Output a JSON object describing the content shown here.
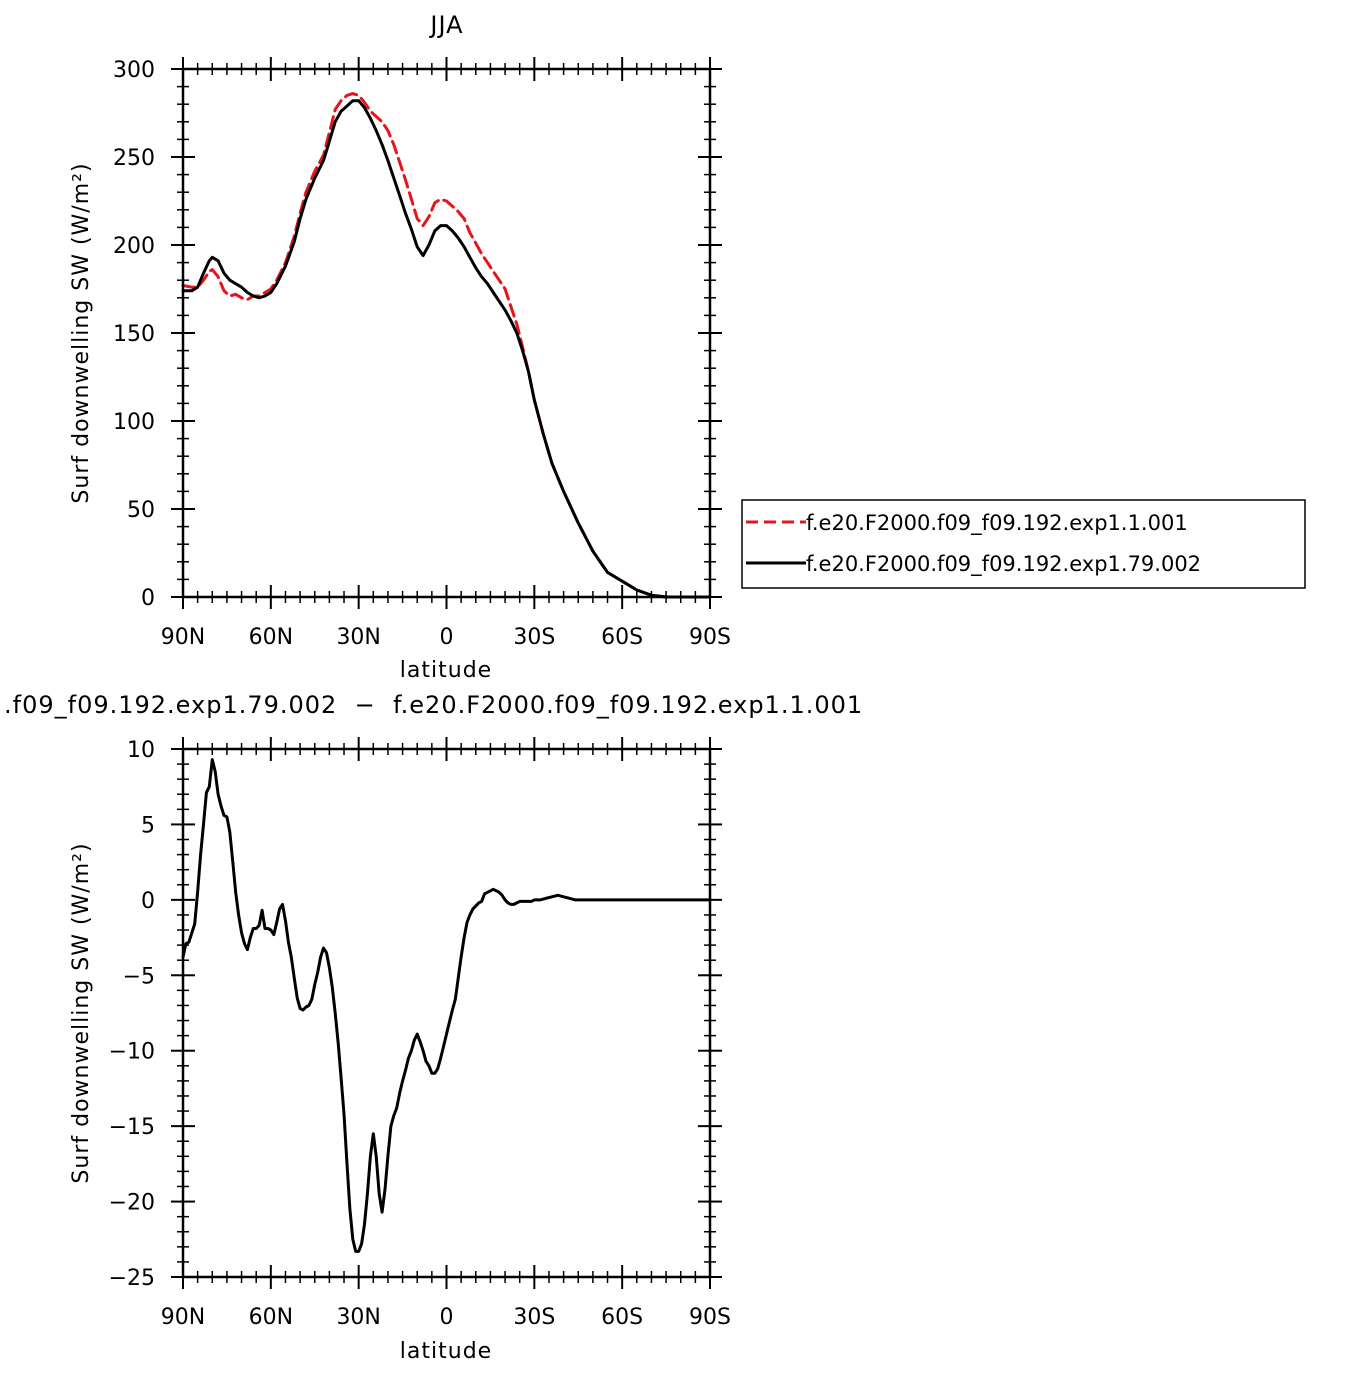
{
  "chart_data": [
    {
      "type": "line",
      "title": "JJA",
      "xlabel": "latitude",
      "ylabel": "Surf  downwelling  SW  (W/m²)",
      "xticks": [
        "90N",
        "60N",
        "30N",
        "0",
        "30S",
        "60S",
        "90S"
      ],
      "xlim": [
        90,
        -90
      ],
      "ylim": [
        0,
        300
      ],
      "yticks": [
        "0",
        "50",
        "100",
        "150",
        "200",
        "250",
        "300"
      ],
      "legend_position": "right",
      "series": [
        {
          "name": "f.e20.F2000.f09_f09.192.exp1.1.001",
          "color": "#e8141c",
          "style": "dashed",
          "x": [
            90,
            87,
            85,
            83,
            81,
            80,
            78,
            76,
            74,
            72,
            70,
            68,
            66,
            64,
            62,
            60,
            58,
            55,
            52,
            50,
            48,
            45,
            42,
            40,
            38,
            36,
            34,
            32,
            30,
            28,
            26,
            24,
            22,
            20,
            18,
            16,
            14,
            12,
            10,
            8,
            6,
            4,
            2,
            0,
            -2,
            -4,
            -6,
            -8,
            -10,
            -12,
            -14,
            -16,
            -18,
            -20,
            -22,
            -24,
            -26,
            -28,
            -30,
            -33,
            -36,
            -40,
            -45,
            -50,
            -55,
            -60,
            -65,
            -70,
            -75,
            -78,
            -80,
            -85,
            -90
          ],
          "y": [
            177,
            176,
            176,
            180,
            185,
            186,
            182,
            174,
            171,
            172,
            170,
            169,
            171,
            171,
            173,
            175,
            180,
            190,
            205,
            218,
            230,
            242,
            251,
            264,
            277,
            282,
            285,
            286,
            285,
            281,
            276,
            273,
            270,
            265,
            257,
            247,
            237,
            226,
            215,
            211,
            216,
            224,
            226,
            225,
            222,
            219,
            215,
            207,
            201,
            195,
            190,
            185,
            180,
            175,
            165,
            155,
            142,
            128,
            112,
            93,
            76,
            60,
            42,
            26,
            14,
            9,
            4,
            1,
            0,
            0,
            0,
            0,
            0
          ]
        },
        {
          "name": "f.e20.F2000.f09_f09.192.exp1.79.002",
          "color": "#000000",
          "style": "solid",
          "x": [
            90,
            87,
            85,
            83,
            81,
            80,
            78,
            76,
            74,
            72,
            70,
            68,
            66,
            64,
            62,
            60,
            58,
            55,
            52,
            50,
            48,
            45,
            42,
            40,
            38,
            36,
            34,
            32,
            30,
            28,
            26,
            24,
            22,
            20,
            18,
            16,
            14,
            12,
            10,
            8,
            6,
            4,
            2,
            0,
            -2,
            -4,
            -6,
            -8,
            -10,
            -12,
            -14,
            -16,
            -18,
            -20,
            -22,
            -24,
            -26,
            -28,
            -30,
            -33,
            -36,
            -40,
            -45,
            -50,
            -55,
            -60,
            -65,
            -70,
            -75,
            -78,
            -80,
            -85,
            -90
          ],
          "y": [
            174,
            174,
            176,
            184,
            191,
            193,
            191,
            184,
            180,
            178,
            176,
            173,
            171,
            170,
            171,
            173,
            178,
            188,
            202,
            215,
            226,
            238,
            248,
            259,
            270,
            276,
            279,
            282,
            282,
            278,
            272,
            265,
            257,
            248,
            238,
            228,
            218,
            209,
            199,
            194,
            200,
            208,
            211,
            211,
            208,
            204,
            199,
            193,
            187,
            182,
            178,
            173,
            168,
            163,
            157,
            150,
            140,
            128,
            112,
            93,
            76,
            60,
            42,
            26,
            14,
            9,
            4,
            1,
            0,
            0,
            0,
            0,
            0
          ]
        }
      ]
    },
    {
      "type": "line",
      "title": ".f09_f09.192.exp1.79.002  −  f.e20.F2000.f09_f09.192.exp1.1.001",
      "xlabel": "latitude",
      "ylabel": "Surf  downwelling  SW  (W/m²)",
      "xticks": [
        "90N",
        "60N",
        "30N",
        "0",
        "30S",
        "60S",
        "90S"
      ],
      "xlim": [
        90,
        -90
      ],
      "ylim": [
        -25,
        10
      ],
      "yticks": [
        "−25",
        "−20",
        "−15",
        "−10",
        "−5",
        "0",
        "5",
        "10"
      ],
      "series": [
        {
          "color": "#000000",
          "style": "solid",
          "x": [
            90,
            89,
            88,
            87,
            86,
            85,
            84,
            83,
            82,
            81,
            80,
            79,
            78,
            77,
            76,
            75,
            74,
            73,
            72,
            71,
            70,
            69,
            68,
            67,
            66,
            65,
            64,
            63,
            62,
            61,
            60,
            59,
            58,
            57,
            56,
            55,
            54,
            53,
            52,
            51,
            50,
            49,
            48,
            47,
            46,
            45,
            44,
            43,
            42,
            41,
            40,
            39,
            38,
            37,
            36,
            35,
            34,
            33,
            32,
            31,
            30,
            29,
            28,
            27,
            26,
            25,
            24,
            23,
            22,
            21,
            20,
            19,
            18,
            17,
            16,
            15,
            14,
            13,
            12,
            11,
            10,
            9,
            8,
            7,
            6,
            5,
            4,
            3,
            2,
            1,
            0,
            -1,
            -2,
            -3,
            -4,
            -5,
            -6,
            -7,
            -8,
            -9,
            -10,
            -11,
            -12,
            -13,
            -14,
            -15,
            -16,
            -17,
            -18,
            -19,
            -20,
            -21,
            -22,
            -23,
            -24,
            -25,
            -26,
            -27,
            -28,
            -29,
            -30,
            -32,
            -34,
            -36,
            -38,
            -40,
            -42,
            -44,
            -46,
            -48,
            -50,
            -55,
            -60,
            -63,
            -66,
            -70,
            -75,
            -80,
            -85,
            -90
          ],
          "y": [
            -3.8,
            -2.9,
            -2.8,
            -2.2,
            -1.6,
            0.5,
            3.0,
            5.0,
            7.1,
            7.5,
            9.3,
            8.5,
            7.0,
            6.2,
            5.6,
            5.5,
            4.5,
            2.5,
            0.5,
            -1.0,
            -2.2,
            -2.9,
            -3.3,
            -2.5,
            -1.9,
            -1.9,
            -1.7,
            -0.7,
            -1.9,
            -1.9,
            -2.0,
            -2.3,
            -1.5,
            -0.6,
            -0.3,
            -1.4,
            -2.8,
            -3.8,
            -5.2,
            -6.5,
            -7.2,
            -7.3,
            -7.1,
            -7.0,
            -6.6,
            -5.6,
            -4.8,
            -3.8,
            -3.2,
            -3.5,
            -4.5,
            -5.8,
            -7.5,
            -9.5,
            -11.8,
            -14.2,
            -17.5,
            -20.5,
            -22.5,
            -23.3,
            -23.3,
            -22.8,
            -21.5,
            -19.5,
            -17.0,
            -15.5,
            -17.0,
            -19.5,
            -20.7,
            -19.2,
            -17.0,
            -15.0,
            -14.3,
            -13.8,
            -12.8,
            -12.0,
            -11.3,
            -10.5,
            -10.0,
            -9.3,
            -8.9,
            -9.4,
            -10.0,
            -10.7,
            -11.0,
            -11.5,
            -11.5,
            -11.2,
            -10.5,
            -9.7,
            -8.9,
            -8.1,
            -7.3,
            -6.6,
            -5.2,
            -3.8,
            -2.5,
            -1.5,
            -1.0,
            -0.6,
            -0.4,
            -0.2,
            -0.1,
            0.4,
            0.5,
            0.6,
            0.7,
            0.6,
            0.5,
            0.3,
            0.0,
            -0.2,
            -0.3,
            -0.3,
            -0.2,
            -0.1,
            -0.1,
            -0.1,
            -0.1,
            -0.1,
            0.0,
            0.0,
            0.1,
            0.2,
            0.3,
            0.2,
            0.1,
            0.0,
            0.0,
            0.0,
            0.0,
            0.0,
            0.0,
            0.0,
            0.0,
            0.0,
            0.0,
            0.0,
            0.0,
            0.0
          ]
        }
      ]
    }
  ]
}
